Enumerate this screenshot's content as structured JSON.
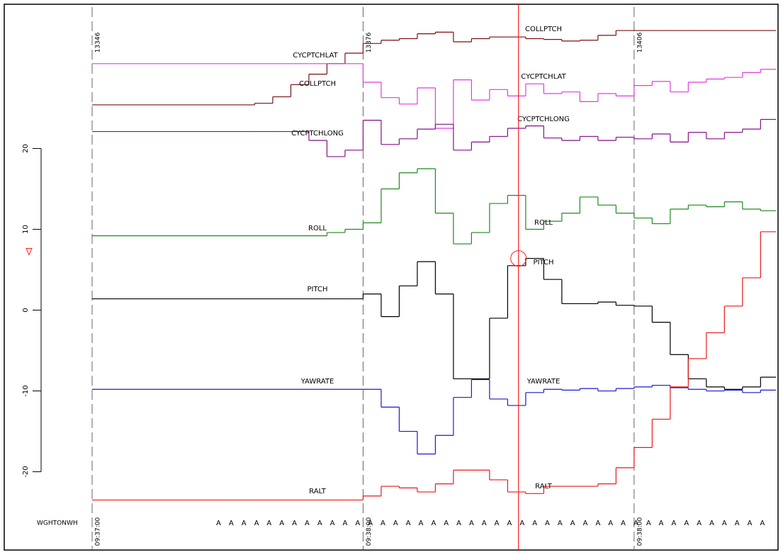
{
  "chart_data": {
    "type": "step",
    "x": [
      13346,
      13348,
      13350,
      13352,
      13354,
      13356,
      13358,
      13360,
      13362,
      13364,
      13366,
      13368,
      13370,
      13372,
      13374,
      13376,
      13378,
      13380,
      13382,
      13384,
      13386,
      13388,
      13390,
      13392,
      13394,
      13396,
      13398,
      13400,
      13402,
      13404,
      13406,
      13408,
      13410,
      13412,
      13414,
      13416,
      13418,
      13420
    ],
    "xlim": [
      13346,
      13421.7
    ],
    "xticks": [
      13346,
      13376,
      13406
    ],
    "time_labels": [
      "09:37:00",
      "09:38:00",
      "09:38:00"
    ],
    "ylim": [
      -29.6,
      37.5
    ],
    "yticks": [
      -20,
      -10,
      0,
      10,
      20
    ],
    "y_marker": 7.2,
    "cursor": {
      "x": 13393.2,
      "color": "#ff2020"
    },
    "series": [
      {
        "name": "COLLPTCH",
        "color": "#7a1010",
        "values": [
          25.4,
          25.4,
          25.4,
          25.4,
          25.4,
          25.4,
          25.4,
          25.4,
          25.4,
          25.6,
          26.4,
          27.9,
          29.2,
          30.5,
          31.8,
          33.0,
          33.4,
          33.6,
          34.2,
          34.4,
          33.2,
          33.6,
          33.8,
          33.8,
          33.6,
          33.5,
          33.3,
          33.4,
          34.0,
          34.6,
          34.6,
          34.6,
          34.6,
          34.6,
          34.6,
          34.6,
          34.6,
          34.6
        ]
      },
      {
        "name": "CYCPTCHLAT",
        "color": "#e03be0",
        "values": [
          30.5,
          30.5,
          30.5,
          30.5,
          30.5,
          30.5,
          30.5,
          30.5,
          30.5,
          30.5,
          30.5,
          30.5,
          30.5,
          30.5,
          30.5,
          28.2,
          26.3,
          25.5,
          27.5,
          22.5,
          28.5,
          26.0,
          27.3,
          26.5,
          28.0,
          26.8,
          27.0,
          25.8,
          26.8,
          26.5,
          27.8,
          28.3,
          27.0,
          28.2,
          28.6,
          28.8,
          29.4,
          29.8
        ]
      },
      {
        "name": "CYCPTCHLONG",
        "color": "#84108a",
        "values": [
          22.1,
          22.1,
          22.1,
          22.1,
          22.1,
          22.1,
          22.1,
          22.1,
          22.1,
          22.1,
          22.1,
          22.1,
          21.0,
          19.0,
          19.8,
          23.5,
          20.5,
          21.2,
          22.4,
          23.0,
          19.8,
          20.8,
          21.5,
          22.5,
          22.8,
          21.3,
          21.0,
          21.5,
          21.0,
          21.4,
          21.2,
          21.8,
          20.8,
          22.0,
          21.2,
          22.0,
          22.4,
          23.6
        ]
      },
      {
        "name": "ROLL",
        "color": "#1e8a1e",
        "values": [
          9.2,
          9.2,
          9.2,
          9.2,
          9.2,
          9.2,
          9.2,
          9.2,
          9.2,
          9.2,
          9.2,
          9.2,
          9.2,
          9.6,
          10.0,
          10.8,
          15.0,
          17.0,
          17.5,
          12.0,
          8.2,
          9.6,
          13.2,
          14.2,
          10.0,
          11.0,
          12.0,
          14.0,
          13.0,
          12.0,
          11.4,
          10.7,
          12.5,
          13.0,
          12.8,
          13.4,
          12.5,
          12.3
        ]
      },
      {
        "name": "PITCH",
        "color": "#000000",
        "values": [
          1.4,
          1.4,
          1.4,
          1.4,
          1.4,
          1.4,
          1.4,
          1.4,
          1.4,
          1.4,
          1.4,
          1.4,
          1.4,
          1.4,
          1.4,
          2.0,
          -0.8,
          3.0,
          6.0,
          2.0,
          -8.5,
          -8.5,
          -1.0,
          5.5,
          6.4,
          3.8,
          0.8,
          0.8,
          1.0,
          0.6,
          0.5,
          -1.5,
          -5.5,
          -8.5,
          -9.5,
          -9.8,
          -9.5,
          -8.3
        ]
      },
      {
        "name": "YAWRATE",
        "color": "#1a1ad0",
        "values": [
          -9.8,
          -9.8,
          -9.8,
          -9.8,
          -9.8,
          -9.8,
          -9.8,
          -9.8,
          -9.8,
          -9.8,
          -9.8,
          -9.8,
          -9.8,
          -9.8,
          -9.8,
          -9.8,
          -12.0,
          -15.0,
          -17.8,
          -15.5,
          -10.8,
          -8.6,
          -11.0,
          -11.8,
          -10.2,
          -9.8,
          -9.9,
          -9.7,
          -10.0,
          -9.7,
          -9.5,
          -9.3,
          -9.6,
          -9.8,
          -10.0,
          -9.9,
          -10.2,
          -9.9
        ]
      },
      {
        "name": "RALT",
        "color": "#e81a1a",
        "values": [
          -23.5,
          -23.5,
          -23.5,
          -23.5,
          -23.5,
          -23.5,
          -23.5,
          -23.5,
          -23.5,
          -23.5,
          -23.5,
          -23.5,
          -23.5,
          -23.5,
          -23.5,
          -23.0,
          -21.8,
          -22.0,
          -22.5,
          -21.5,
          -19.8,
          -19.8,
          -21.0,
          -22.5,
          -22.7,
          -21.8,
          -21.8,
          -21.8,
          -21.5,
          -19.5,
          -17.0,
          -13.5,
          -9.5,
          -6.0,
          -2.8,
          0.5,
          4.0,
          9.7
        ]
      }
    ],
    "events": {
      "name": "WGHTONWH",
      "label": "A",
      "color": "#9a2aa0",
      "x": [
        13360,
        13361.4,
        13362.8,
        13364.2,
        13365.6,
        13367,
        13368.4,
        13369.8,
        13371.2,
        13372.6,
        13374,
        13375.4,
        13376.8,
        13378.2,
        13379.6,
        13381,
        13382.4,
        13383.8,
        13385.2,
        13386.6,
        13388,
        13389.4,
        13390.8,
        13392.2,
        13393.6,
        13395,
        13396.4,
        13397.8,
        13399.2,
        13400.6,
        13402,
        13403.4,
        13404.8,
        13406.2,
        13407.6,
        13409,
        13410.4,
        13411.8,
        13413.2,
        13414.6,
        13416,
        13417.4,
        13418.8,
        13420.2
      ]
    }
  }
}
